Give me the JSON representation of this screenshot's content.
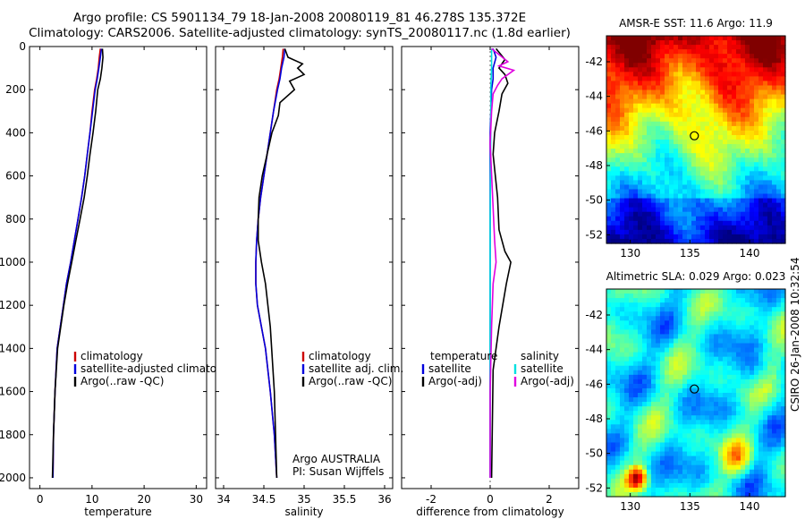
{
  "header": {
    "title_line1": "Argo profile: CS 5901134_79 18-Jan-2008 20080119_81 46.278S 135.372E",
    "title_line2": "Climatology: CARS2006. Satellite-adjusted climatology: synTS_20080117.nc (1.8d earlier)"
  },
  "credit": "CSIRO 26-Jan-2008 10:32:54",
  "colors": {
    "climatology": "#cc0000",
    "satellite": "#0000dd",
    "argo": "#000000",
    "salinity_satellite": "#00e0e0",
    "salinity_argo": "#e000e0"
  },
  "chart_data": [
    {
      "type": "line",
      "xlabel": "temperature",
      "ylabel": "",
      "xlim": [
        -2,
        32
      ],
      "ylim": [
        2050,
        0
      ],
      "xticks": [
        "0",
        "10",
        "20",
        "30"
      ],
      "yticks": [
        "0",
        "200",
        "400",
        "600",
        "800",
        "1000",
        "1200",
        "1400",
        "1600",
        "1800",
        "2000"
      ],
      "legend": [
        "climatology",
        "satellite-adjusted climatology",
        "Argo(..raw -QC)"
      ],
      "legend_loc": "lower-right",
      "series": [
        {
          "name": "climatology",
          "x": [
            11.6,
            11.4,
            11.2,
            10.9,
            10.5,
            10.0,
            9.6,
            9.1,
            8.6,
            8.0,
            7.3,
            6.6,
            5.9,
            5.1,
            4.5,
            3.9,
            3.3,
            2.9,
            2.6,
            2.5
          ],
          "y": [
            10,
            50,
            100,
            150,
            200,
            300,
            400,
            500,
            600,
            700,
            800,
            900,
            1000,
            1100,
            1200,
            1300,
            1400,
            1600,
            1800,
            2000
          ]
        },
        {
          "name": "satellite-adjusted climatology",
          "x": [
            11.8,
            11.6,
            11.3,
            11.0,
            10.6,
            10.1,
            9.6,
            9.1,
            8.6,
            8.0,
            7.3,
            6.6,
            5.9,
            5.1,
            4.5,
            3.9,
            3.3,
            2.9,
            2.6,
            2.5
          ],
          "y": [
            10,
            50,
            100,
            150,
            200,
            300,
            400,
            500,
            600,
            700,
            800,
            900,
            1000,
            1100,
            1200,
            1300,
            1400,
            1600,
            1800,
            2000
          ]
        },
        {
          "name": "Argo(..raw -QC)",
          "x": [
            12.0,
            12.1,
            11.9,
            11.6,
            11.1,
            10.7,
            10.2,
            9.6,
            9.1,
            8.5,
            7.7,
            6.9,
            6.1,
            5.3,
            4.6,
            4.0,
            3.4,
            2.9,
            2.6,
            2.4
          ],
          "y": [
            10,
            50,
            100,
            150,
            200,
            300,
            400,
            500,
            600,
            700,
            800,
            900,
            1000,
            1100,
            1200,
            1300,
            1400,
            1600,
            1800,
            2000
          ]
        }
      ]
    },
    {
      "type": "line",
      "xlabel": "salinity",
      "xlim": [
        33.9,
        36.1
      ],
      "ylim": [
        2050,
        0
      ],
      "xticks": [
        "34",
        "34.5",
        "35",
        "35.5",
        "36"
      ],
      "legend": [
        "climatology",
        "satellite adj. clim.",
        "Argo(..raw -QC)"
      ],
      "legend_loc": "lower-right",
      "annotation": [
        "Argo AUSTRALIA",
        "PI: Susan Wijffels"
      ],
      "series": [
        {
          "name": "climatology",
          "x": [
            34.74,
            34.73,
            34.71,
            34.69,
            34.66,
            34.62,
            34.58,
            34.54,
            34.5,
            34.46,
            34.43,
            34.41,
            34.4,
            34.4,
            34.42,
            34.47,
            34.52,
            34.58,
            34.63,
            34.66
          ],
          "y": [
            10,
            50,
            100,
            150,
            200,
            300,
            400,
            500,
            600,
            700,
            800,
            900,
            1000,
            1100,
            1200,
            1300,
            1400,
            1600,
            1800,
            2000
          ]
        },
        {
          "name": "satellite adj. clim.",
          "x": [
            34.76,
            34.75,
            34.72,
            34.7,
            34.67,
            34.62,
            34.58,
            34.54,
            34.5,
            34.46,
            34.43,
            34.41,
            34.4,
            34.4,
            34.42,
            34.47,
            34.52,
            34.58,
            34.63,
            34.66
          ],
          "y": [
            10,
            50,
            100,
            150,
            200,
            300,
            400,
            500,
            600,
            700,
            800,
            900,
            1000,
            1100,
            1200,
            1300,
            1400,
            1600,
            1800,
            2000
          ]
        },
        {
          "name": "Argo(..raw -QC)",
          "x": [
            34.76,
            34.8,
            34.98,
            34.92,
            35.0,
            34.82,
            34.88,
            34.7,
            34.68,
            34.6,
            34.54,
            34.48,
            34.44,
            34.43,
            34.43,
            34.47,
            34.52,
            34.58,
            34.63,
            34.66
          ],
          "y": [
            10,
            50,
            80,
            100,
            130,
            160,
            200,
            260,
            320,
            400,
            500,
            600,
            700,
            800,
            900,
            1000,
            1100,
            1300,
            1600,
            2000
          ]
        }
      ]
    },
    {
      "type": "line",
      "xlabel": "difference from climatology",
      "xlim": [
        -3,
        3
      ],
      "ylim": [
        2050,
        0
      ],
      "xticks": [
        "-2",
        "0",
        "2"
      ],
      "legend": [
        "temperature",
        "satellite",
        "Argo(-adj)",
        "salinity",
        "satellite",
        "Argo(-adj)"
      ],
      "legend_loc": "lower",
      "series": [
        {
          "name": "temperature satellite",
          "x": [
            0.1,
            0.2,
            0.1,
            0.1,
            0.05,
            0.0,
            0.0,
            0.0,
            0.0,
            0.0
          ],
          "y": [
            10,
            50,
            100,
            150,
            200,
            400,
            800,
            1200,
            1600,
            2000
          ]
        },
        {
          "name": "temperature Argo(-adj)",
          "x": [
            0.2,
            0.5,
            0.3,
            0.5,
            0.6,
            0.4,
            0.3,
            0.15,
            0.1,
            0.25,
            0.3,
            0.5,
            0.7,
            0.55,
            0.3,
            0.1,
            0.05
          ],
          "y": [
            10,
            60,
            100,
            130,
            170,
            220,
            300,
            400,
            500,
            700,
            850,
            950,
            1000,
            1100,
            1300,
            1500,
            2000
          ]
        },
        {
          "name": "salinity satellite",
          "x": [
            0.05,
            0.05,
            0.02,
            0.02,
            0.0,
            0.0,
            0.0
          ],
          "y": [
            10,
            100,
            200,
            400,
            800,
            1400,
            2000
          ]
        },
        {
          "name": "salinity Argo(-adj)",
          "x": [
            0.05,
            0.6,
            0.3,
            0.8,
            0.4,
            0.25,
            0.1,
            0.05,
            0.0,
            0.15,
            0.2,
            0.1,
            0.05,
            0.0,
            0.0
          ],
          "y": [
            10,
            70,
            90,
            110,
            150,
            180,
            220,
            300,
            450,
            900,
            1000,
            1100,
            1300,
            1600,
            2000
          ]
        }
      ]
    },
    {
      "type": "heatmap",
      "title": "AMSR-E SST: 11.6 Argo: 11.9",
      "xticks": [
        "130",
        "135",
        "140"
      ],
      "yticks": [
        "-42",
        "-44",
        "-46",
        "-48",
        "-50",
        "-52"
      ],
      "xlim": [
        128,
        143
      ],
      "ylim": [
        -52.5,
        -40.5
      ],
      "marker": {
        "lon": 135.372,
        "lat": -46.278
      }
    },
    {
      "type": "heatmap",
      "title": "Altimetric SLA: 0.029 Argo: 0.023",
      "xticks": [
        "130",
        "135",
        "140"
      ],
      "yticks": [
        "-42",
        "-44",
        "-46",
        "-48",
        "-50",
        "-52"
      ],
      "xlim": [
        128,
        143
      ],
      "ylim": [
        -52.5,
        -40.5
      ],
      "marker": {
        "lon": 135.372,
        "lat": -46.278
      }
    }
  ]
}
